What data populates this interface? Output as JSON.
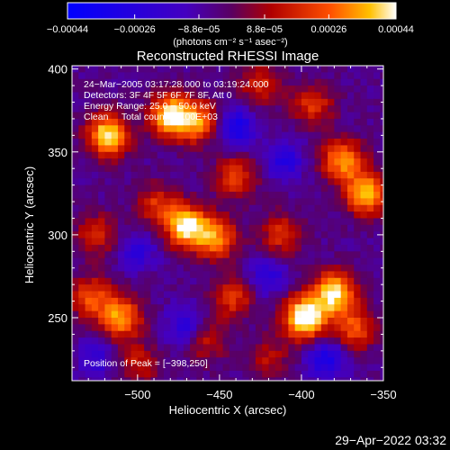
{
  "chart_data": {
    "type": "heatmap",
    "title": "Reconstructed RHESSI Image",
    "xlabel": "Heliocentric X (arcsec)",
    "ylabel": "Heliocentric Y (arcsec)",
    "xlim": [
      -540,
      -350
    ],
    "ylim": [
      212,
      402
    ],
    "x_ticks": [
      -500,
      -450,
      -400,
      -350
    ],
    "x_tick_labels": [
      "−500",
      "−450",
      "−400",
      "−350"
    ],
    "y_ticks": [
      250,
      300,
      350,
      400
    ],
    "y_tick_labels": [
      "250",
      "300",
      "350",
      "400"
    ],
    "colorbar": {
      "range": [
        -0.00044,
        0.00044
      ],
      "ticks": [
        -0.00044,
        -0.00026,
        -8.8e-05,
        8.8e-05,
        0.00026,
        0.00044
      ],
      "tick_labels": [
        "−0.00044",
        "−0.00026",
        "−8.8e−05",
        "8.8e−05",
        "0.00026",
        "0.00044"
      ],
      "unit_label": "(photons cm⁻² s⁻¹ asec⁻²)"
    },
    "annotations": [
      "24−Mar−2005 03:17:28.000 to 03:19:24.000",
      "Detectors: 3F 4F 5F 6F 7F 8F, Att 0",
      "Energy Range: 25.0 − 50.0 keV",
      "Clean     Total counts: 2.00E+03"
    ],
    "peak_label": "Position of Peak = [−398,250]",
    "peak_position": [
      -398,
      250
    ],
    "blobs": [
      {
        "x": -518,
        "y": 360,
        "v": 1.0
      },
      {
        "x": -480,
        "y": 372,
        "v": 1.0
      },
      {
        "x": -463,
        "y": 368,
        "v": 0.7
      },
      {
        "x": -470,
        "y": 305,
        "v": 1.0
      },
      {
        "x": -452,
        "y": 298,
        "v": 0.75
      },
      {
        "x": -488,
        "y": 318,
        "v": 0.5
      },
      {
        "x": -510,
        "y": 250,
        "v": 0.8
      },
      {
        "x": -528,
        "y": 262,
        "v": 0.6
      },
      {
        "x": -398,
        "y": 250,
        "v": 1.2
      },
      {
        "x": -380,
        "y": 265,
        "v": 1.0
      },
      {
        "x": -368,
        "y": 243,
        "v": 0.6
      },
      {
        "x": -360,
        "y": 325,
        "v": 0.95
      },
      {
        "x": -375,
        "y": 345,
        "v": 0.8
      },
      {
        "x": -393,
        "y": 378,
        "v": 0.5
      },
      {
        "x": -440,
        "y": 335,
        "v": 0.55
      },
      {
        "x": -442,
        "y": 262,
        "v": 0.5
      },
      {
        "x": -425,
        "y": 390,
        "v": 0.45
      },
      {
        "x": -525,
        "y": 300,
        "v": 0.45
      },
      {
        "x": -412,
        "y": 300,
        "v": 0.5
      },
      {
        "x": -500,
        "y": 222,
        "v": 0.4
      },
      {
        "x": -458,
        "y": 236,
        "v": 0.4
      },
      {
        "x": -420,
        "y": 225,
        "v": 0.35
      }
    ],
    "dips": [
      {
        "x": -440,
        "y": 365,
        "v": 0.55
      },
      {
        "x": -410,
        "y": 345,
        "v": 0.4
      },
      {
        "x": -500,
        "y": 290,
        "v": 0.35
      },
      {
        "x": -420,
        "y": 275,
        "v": 0.35
      },
      {
        "x": -470,
        "y": 245,
        "v": 0.4
      },
      {
        "x": -385,
        "y": 225,
        "v": 0.5
      },
      {
        "x": -525,
        "y": 225,
        "v": 0.3
      }
    ]
  },
  "footer": {
    "date": "29−Apr−2022 03:32"
  }
}
